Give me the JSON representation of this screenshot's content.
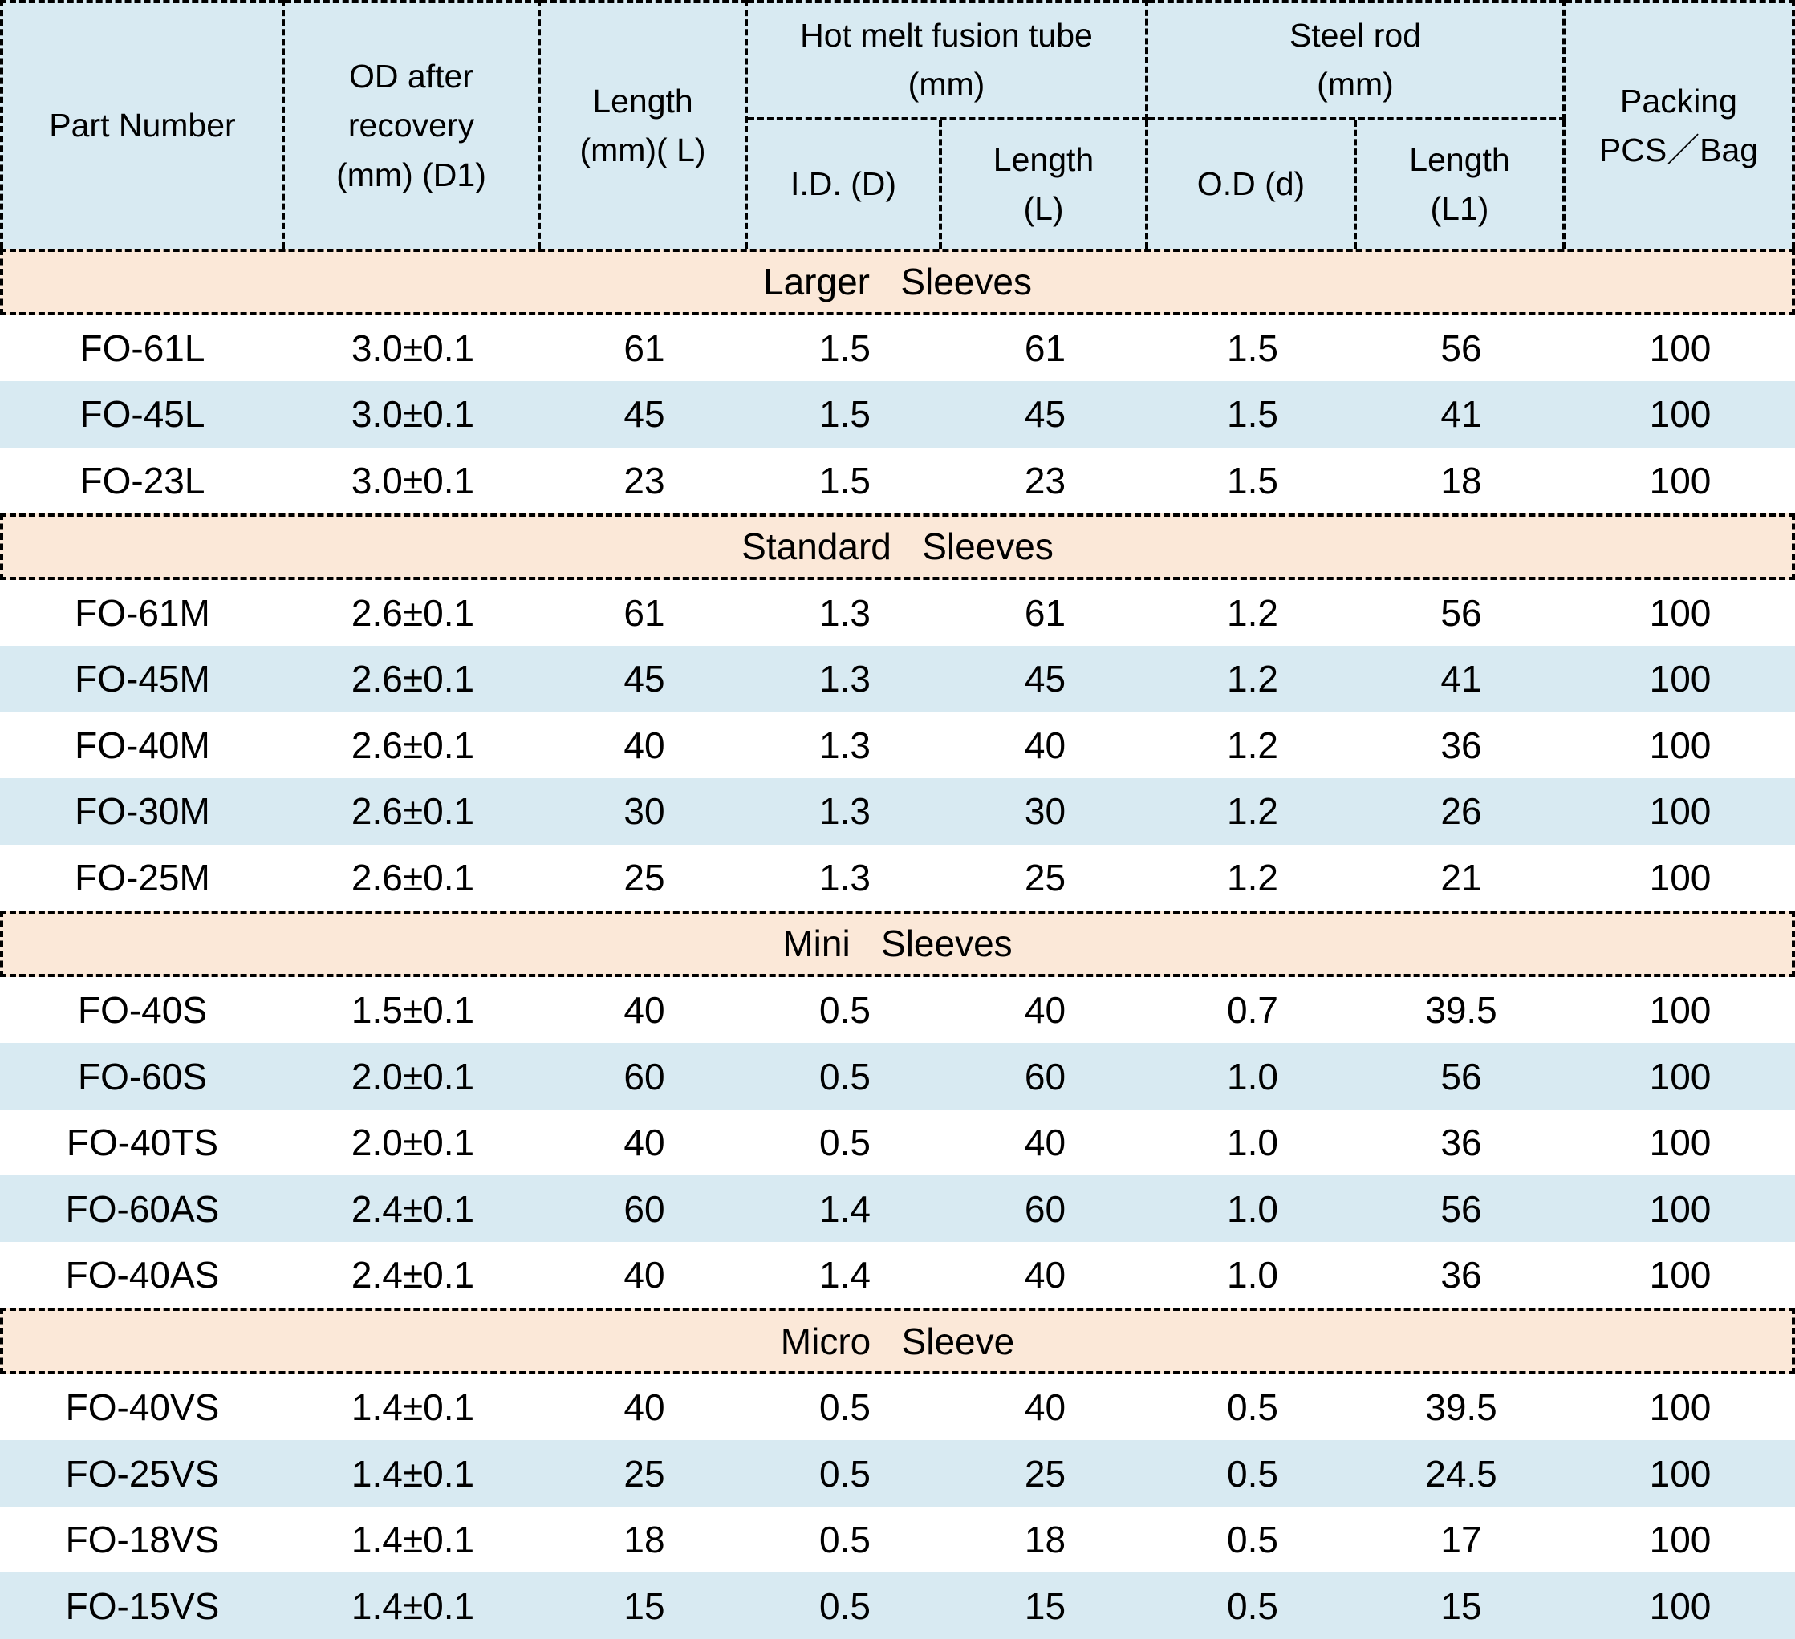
{
  "colors": {
    "header_bg": "#d8eaf2",
    "row_stripe_bg": "#d8eaf2",
    "section_bg": "#fbe8d8",
    "border": "#000000",
    "text": "#000000"
  },
  "table": {
    "header": {
      "part_number": "Part Number",
      "od_after_recovery": "OD after\nrecovery\n(mm) (D1)",
      "length": "Length\n(mm)( L)",
      "hot_melt_group": "Hot melt fusion tube\n(mm)",
      "hot_melt_id": "I.D. (D)",
      "hot_melt_length": "Length\n(L)",
      "steel_rod_group": "Steel rod\n(mm)",
      "steel_rod_od": "O.D (d)",
      "steel_rod_length": "Length\n(L1)",
      "packing": "Packing\nPCS／Bag"
    },
    "sections": [
      {
        "title": "Larger   Sleeves",
        "rows": [
          [
            "FO-61L",
            "3.0±0.1",
            "61",
            "1.5",
            "61",
            "1.5",
            "56",
            "100"
          ],
          [
            "FO-45L",
            "3.0±0.1",
            "45",
            "1.5",
            "45",
            "1.5",
            "41",
            "100"
          ],
          [
            "FO-23L",
            "3.0±0.1",
            "23",
            "1.5",
            "23",
            "1.5",
            "18",
            "100"
          ]
        ]
      },
      {
        "title": "Standard   Sleeves",
        "rows": [
          [
            "FO-61M",
            "2.6±0.1",
            "61",
            "1.3",
            "61",
            "1.2",
            "56",
            "100"
          ],
          [
            "FO-45M",
            "2.6±0.1",
            "45",
            "1.3",
            "45",
            "1.2",
            "41",
            "100"
          ],
          [
            "FO-40M",
            "2.6±0.1",
            "40",
            "1.3",
            "40",
            "1.2",
            "36",
            "100"
          ],
          [
            "FO-30M",
            "2.6±0.1",
            "30",
            "1.3",
            "30",
            "1.2",
            "26",
            "100"
          ],
          [
            "FO-25M",
            "2.6±0.1",
            "25",
            "1.3",
            "25",
            "1.2",
            "21",
            "100"
          ]
        ]
      },
      {
        "title": "Mini   Sleeves",
        "rows": [
          [
            "FO-40S",
            "1.5±0.1",
            "40",
            "0.5",
            "40",
            "0.7",
            "39.5",
            "100"
          ],
          [
            "FO-60S",
            "2.0±0.1",
            "60",
            "0.5",
            "60",
            "1.0",
            "56",
            "100"
          ],
          [
            "FO-40TS",
            "2.0±0.1",
            "40",
            "0.5",
            "40",
            "1.0",
            "36",
            "100"
          ],
          [
            "FO-60AS",
            "2.4±0.1",
            "60",
            "1.4",
            "60",
            "1.0",
            "56",
            "100"
          ],
          [
            "FO-40AS",
            "2.4±0.1",
            "40",
            "1.4",
            "40",
            "1.0",
            "36",
            "100"
          ]
        ]
      },
      {
        "title": "Micro   Sleeve",
        "rows": [
          [
            "FO-40VS",
            "1.4±0.1",
            "40",
            "0.5",
            "40",
            "0.5",
            "39.5",
            "100"
          ],
          [
            "FO-25VS",
            "1.4±0.1",
            "25",
            "0.5",
            "25",
            "0.5",
            "24.5",
            "100"
          ],
          [
            "FO-18VS",
            "1.4±0.1",
            "18",
            "0.5",
            "18",
            "0.5",
            "17",
            "100"
          ],
          [
            "FO-15VS",
            "1.4±0.1",
            "15",
            "0.5",
            "15",
            "0.5",
            "15",
            "100"
          ]
        ]
      }
    ]
  }
}
